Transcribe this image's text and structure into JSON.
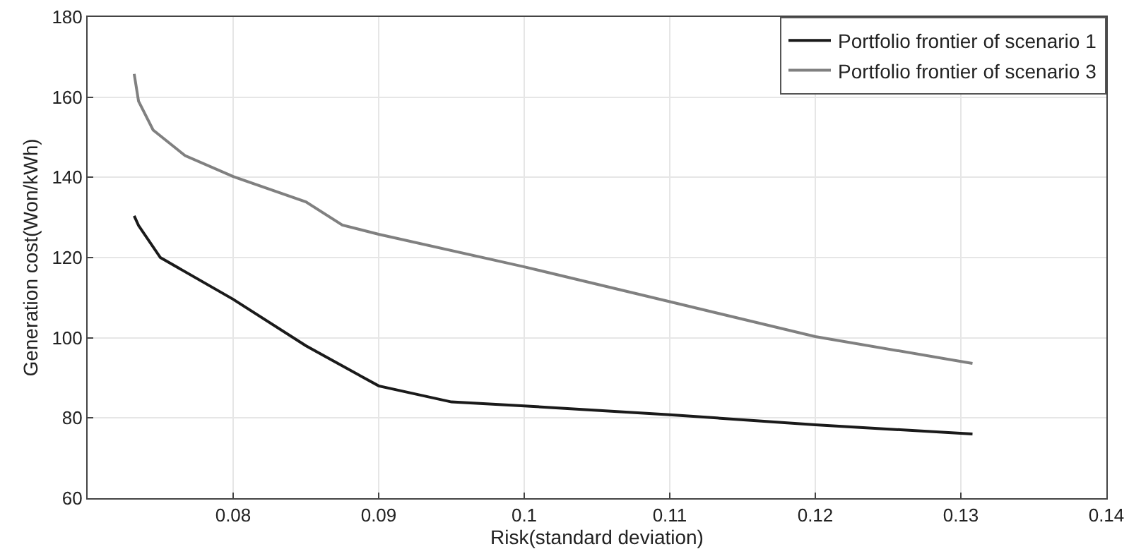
{
  "chart_data": {
    "type": "line",
    "xlabel": "Risk(standard deviation)",
    "ylabel": "Generation cost(Won/kWh)",
    "xlim": [
      0.07,
      0.14
    ],
    "xticks": [
      0.08,
      0.09,
      0.1,
      0.11,
      0.12,
      0.13,
      0.14
    ],
    "ylim": [
      60,
      180
    ],
    "yticks": [
      60,
      80,
      100,
      120,
      140,
      160,
      180
    ],
    "grid": true,
    "legend": "top right",
    "marker": "none",
    "line_style": "solid",
    "series": [
      {
        "name": "Portfolio frontier of scenario 1",
        "color": "#1a1a1a",
        "x": [
          0.0732,
          0.0735,
          0.075,
          0.08,
          0.085,
          0.09,
          0.095,
          0.1,
          0.11,
          0.12,
          0.1308
        ],
        "values": [
          130.4,
          128,
          120,
          109.6,
          98,
          88,
          84,
          83,
          80.8,
          78.3,
          76
        ]
      },
      {
        "name": "Portfolio frontier of scenario 3",
        "color": "#808080",
        "x": [
          0.0732,
          0.0735,
          0.0745,
          0.0767,
          0.08,
          0.085,
          0.0875,
          0.09,
          0.1,
          0.11,
          0.12,
          0.1308
        ],
        "values": [
          165.8,
          159,
          151.8,
          145.4,
          140.2,
          133.9,
          128.1,
          125.8,
          117.7,
          109,
          100.3,
          93.6
        ]
      }
    ]
  }
}
